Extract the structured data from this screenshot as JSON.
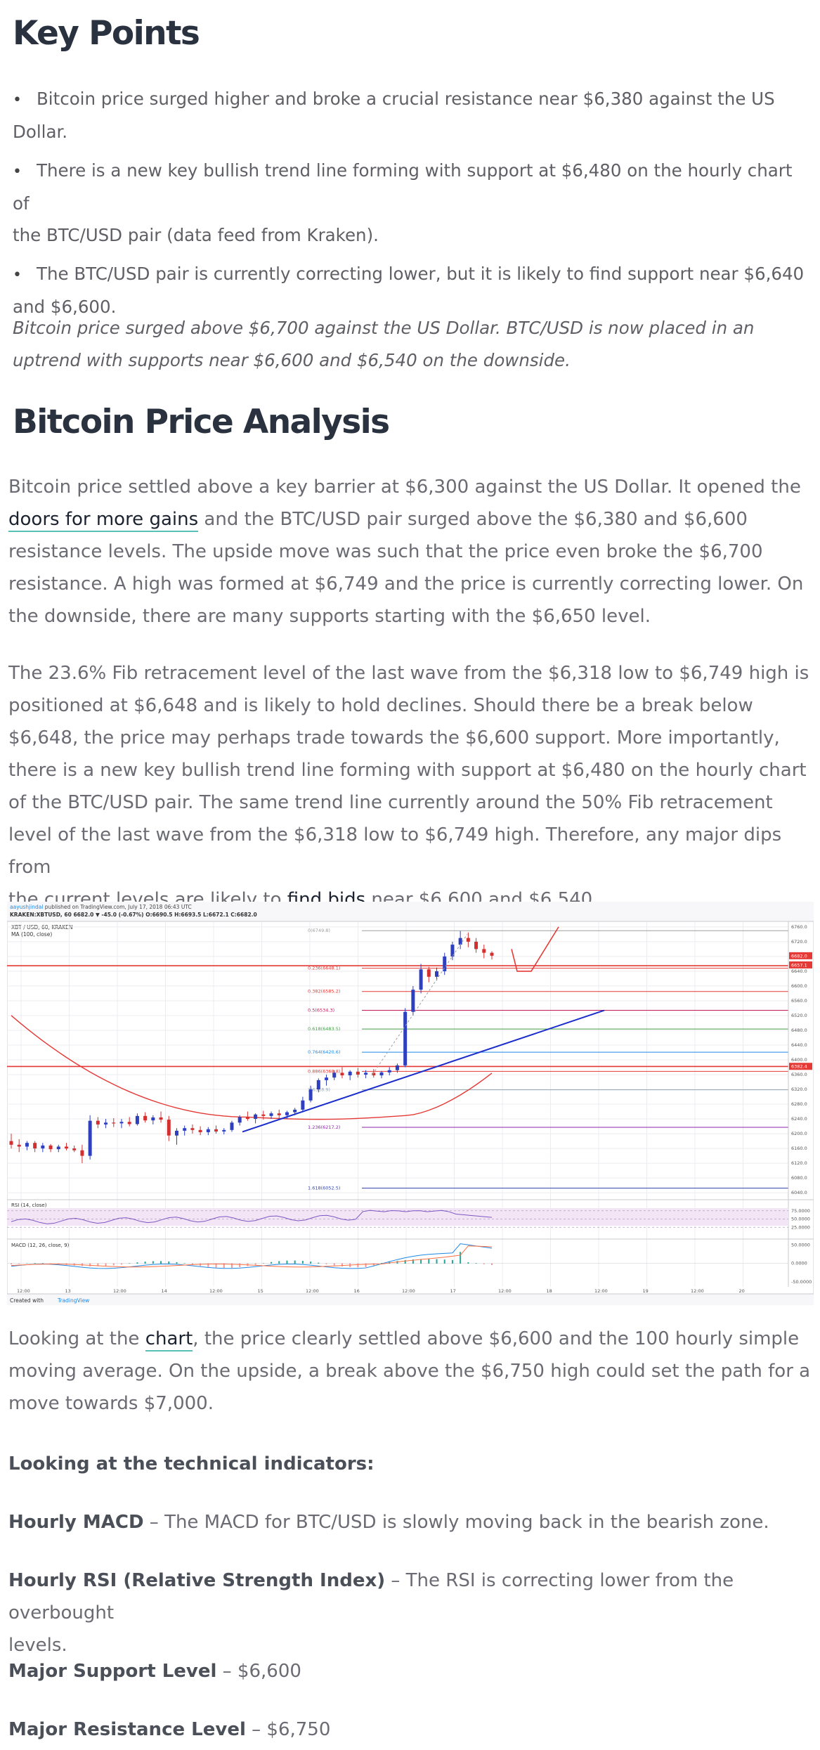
{
  "key_points": {
    "heading": "Key Points",
    "bullet_symbol": "•",
    "items": [
      {
        "line1": "Bitcoin price surged higher and broke a crucial resistance near $6,380 against the US",
        "line2": "Dollar."
      },
      {
        "line1": "There is a new key bullish trend line forming with support at $6,480 on the hourly chart of",
        "line2": "the BTC/USD pair (data feed from Kraken)."
      },
      {
        "line1": "The BTC/USD pair is currently correcting lower, but it is likely to find support near $6,640",
        "line2": "and $6,600."
      }
    ],
    "intro_line1": "Bitcoin price surged above $6,700 against the US Dollar. BTC/USD is now placed in an",
    "intro_line2": "uptrend with supports near $6,600 and $6,540 on the downside."
  },
  "analysis": {
    "heading": "Bitcoin Price Analysis",
    "p1": {
      "l1": "Bitcoin price settled above a key barrier at $6,300 against the US Dollar. It opened the",
      "l2_link": "doors for more gains",
      "l2_rest": " and the BTC/USD pair surged above the $6,380 and $6,600",
      "l3": "resistance levels. The upside move was such that the price even broke the $6,700",
      "l4": "resistance. A high was formed at $6,749 and the price is currently correcting lower. On",
      "l5": "the downside, there are many supports starting with the $6,650 level."
    },
    "p2": {
      "l1": "The 23.6% Fib retracement level of the last wave from the $6,318 low to $6,749 high is",
      "l2": "positioned at $6,648 and is likely to hold declines. Should there be a break below",
      "l3": "$6,648, the price may perhaps trade towards the $6,600 support. More importantly,",
      "l4": "there is a new key bullish trend line forming with support at $6,480 on the hourly chart",
      "l5": "of the BTC/USD pair. The same trend line currently around the 50% Fib retracement",
      "l6": "level of the last wave from the $6,318 low to $6,749 high. Therefore, any major dips from",
      "l7_pre": "the current levels are likely to ",
      "l7_link": "find bids",
      "l7_post": " near $6,600 and $6,540."
    },
    "p3": {
      "l1_pre": "Looking at the ",
      "l1_link": "chart",
      "l1_post": ", the price clearly settled above $6,600 and the 100 hourly simple",
      "l2": "moving average. On the upside, a break above the $6,750 high could set the path for a",
      "l3": "move towards $7,000."
    },
    "indicators_heading": "Looking at the technical indicators:",
    "macd": {
      "label": "Hourly MACD",
      "sep": " – ",
      "text": "The MACD for BTC/USD is slowly moving back in the bearish zone."
    },
    "rsi": {
      "label": "Hourly RSI (Relative Strength Index)",
      "sep": " – ",
      "text": "The RSI is correcting lower from the overbought",
      "text2": "levels."
    },
    "support": {
      "label": "Major Support Level",
      "sep": " – ",
      "value": "$6,600"
    },
    "resistance": {
      "label": "Major Resistance Level",
      "sep": " – ",
      "value": "$6,750"
    }
  },
  "chart_data": {
    "type": "candlestick",
    "header_line1_author": "aayushjindal",
    "header_line1_rest": " published on TradingView.com, July 17, 2018 06:43 UTC",
    "header_line2": "KRAKEN:XBTUSD, 60  6682.0 ▼ -45.0 (-0.67%)  O:6690.5 H:6693.5 L:6672.1 C:6682.0",
    "symbol_label": "XBT / USD, 60, KRAKEN",
    "ma_label": "MA (100, close)",
    "rsi_label": "RSI (14, close)",
    "macd_label": "MACD (12, 26, close, 9)",
    "footer_created": "Created with",
    "footer_brand": "TradingView",
    "y_range": [
      6025,
      6775
    ],
    "y_ticks": [
      "6760.0",
      "6720.0",
      "6680.0",
      "6640.0",
      "6600.0",
      "6560.0",
      "6520.0",
      "6480.0",
      "6440.0",
      "6400.0",
      "6360.0",
      "6320.0",
      "6280.0",
      "6240.0",
      "6200.0",
      "6160.0",
      "6120.0",
      "6080.0",
      "6040.0"
    ],
    "price_tags": [
      "6682.0",
      "6657.1",
      "6382.4"
    ],
    "rsi_ticks": [
      "75.0000",
      "50.0000",
      "25.0000"
    ],
    "macd_ticks": [
      "50.0000",
      "0.0000",
      "-50.0000"
    ],
    "x_labels": [
      "12:00",
      "13",
      "12:00",
      "14",
      "12:00",
      "15",
      "12:00",
      "16",
      "12:00",
      "17",
      "12:00",
      "18",
      "12:00",
      "19",
      "12:00",
      "20"
    ],
    "fib_levels": [
      {
        "label": "0(6749.8)",
        "value": 6749.8,
        "color": "#9e9e9e"
      },
      {
        "label": "0.236(6648.1)",
        "value": 6648.1,
        "color": "#e53935"
      },
      {
        "label": "0.382(6585.2)",
        "value": 6585.2,
        "color": "#e53935"
      },
      {
        "label": "0.5(6534.3)",
        "value": 6534.3,
        "color": "#c2185b"
      },
      {
        "label": "0.618(6483.5)",
        "value": 6483.5,
        "color": "#43a047"
      },
      {
        "label": "0.764(6420.6)",
        "value": 6420.6,
        "color": "#1e88e5"
      },
      {
        "label": "0.886(6368.8)",
        "value": 6368.8,
        "color": "#e53935"
      },
      {
        "label": "1(6318.9)",
        "value": 6318.9,
        "color": "#90a4ae"
      },
      {
        "label": "1.236(6217.2)",
        "value": 6217.2,
        "color": "#8e24aa"
      },
      {
        "label": "1.618(6052.5)",
        "value": 6052.5,
        "color": "#3949ab"
      }
    ],
    "horizontal_lines": [
      {
        "value": 6655,
        "color": "#e53935"
      },
      {
        "value": 6382,
        "color": "#e53935"
      }
    ],
    "candles": [
      [
        6180,
        6200,
        6160,
        6170
      ],
      [
        6170,
        6185,
        6150,
        6165
      ],
      [
        6165,
        6180,
        6155,
        6175
      ],
      [
        6175,
        6180,
        6150,
        6160
      ],
      [
        6160,
        6175,
        6150,
        6168
      ],
      [
        6168,
        6172,
        6150,
        6158
      ],
      [
        6158,
        6170,
        6150,
        6165
      ],
      [
        6165,
        6175,
        6155,
        6160
      ],
      [
        6160,
        6168,
        6150,
        6155
      ],
      [
        6155,
        6170,
        6120,
        6140
      ],
      [
        6140,
        6250,
        6130,
        6235
      ],
      [
        6235,
        6245,
        6215,
        6225
      ],
      [
        6225,
        6240,
        6215,
        6230
      ],
      [
        6230,
        6242,
        6218,
        6228
      ],
      [
        6228,
        6240,
        6215,
        6232
      ],
      [
        6232,
        6245,
        6220,
        6226
      ],
      [
        6226,
        6255,
        6222,
        6248
      ],
      [
        6248,
        6258,
        6230,
        6236
      ],
      [
        6236,
        6250,
        6225,
        6244
      ],
      [
        6244,
        6260,
        6230,
        6238
      ],
      [
        6238,
        6248,
        6180,
        6195
      ],
      [
        6195,
        6215,
        6170,
        6208
      ],
      [
        6208,
        6222,
        6195,
        6215
      ],
      [
        6215,
        6225,
        6200,
        6210
      ],
      [
        6210,
        6220,
        6196,
        6204
      ],
      [
        6204,
        6218,
        6196,
        6212
      ],
      [
        6212,
        6222,
        6200,
        6206
      ],
      [
        6206,
        6215,
        6198,
        6210
      ],
      [
        6210,
        6235,
        6205,
        6230
      ],
      [
        6230,
        6250,
        6222,
        6245
      ],
      [
        6245,
        6260,
        6235,
        6240
      ],
      [
        6240,
        6255,
        6228,
        6252
      ],
      [
        6252,
        6262,
        6238,
        6248
      ],
      [
        6248,
        6260,
        6240,
        6255
      ],
      [
        6255,
        6265,
        6242,
        6250
      ],
      [
        6250,
        6262,
        6240,
        6258
      ],
      [
        6258,
        6270,
        6250,
        6265
      ],
      [
        6265,
        6300,
        6258,
        6290
      ],
      [
        6290,
        6330,
        6285,
        6320
      ],
      [
        6320,
        6350,
        6312,
        6345
      ],
      [
        6345,
        6360,
        6330,
        6352
      ],
      [
        6352,
        6372,
        6345,
        6365
      ],
      [
        6365,
        6380,
        6350,
        6358
      ],
      [
        6358,
        6372,
        6345,
        6368
      ],
      [
        6368,
        6378,
        6352,
        6360
      ],
      [
        6360,
        6372,
        6350,
        6365
      ],
      [
        6365,
        6375,
        6352,
        6358
      ],
      [
        6358,
        6370,
        6350,
        6366
      ],
      [
        6366,
        6380,
        6358,
        6372
      ],
      [
        6372,
        6390,
        6365,
        6385
      ],
      [
        6385,
        6540,
        6380,
        6530
      ],
      [
        6530,
        6600,
        6520,
        6590
      ],
      [
        6590,
        6660,
        6580,
        6645
      ],
      [
        6645,
        6652,
        6610,
        6625
      ],
      [
        6625,
        6650,
        6615,
        6640
      ],
      [
        6640,
        6690,
        6630,
        6680
      ],
      [
        6680,
        6720,
        6670,
        6712
      ],
      [
        6712,
        6749,
        6700,
        6730
      ],
      [
        6730,
        6745,
        6705,
        6720
      ],
      [
        6720,
        6730,
        6690,
        6700
      ],
      [
        6700,
        6712,
        6675,
        6690
      ],
      [
        6690,
        6694,
        6672,
        6682
      ]
    ]
  }
}
